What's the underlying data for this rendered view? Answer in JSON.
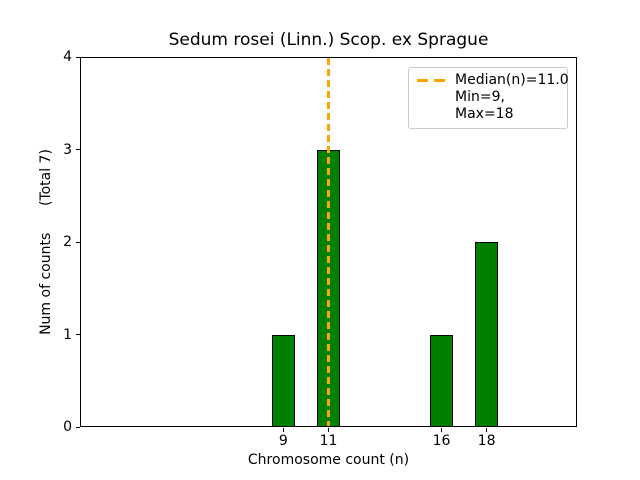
{
  "chart_data": {
    "type": "bar",
    "title": "Sedum rosei (Linn.) Scop. ex Sprague",
    "xlabel": "Chromosome count (n)",
    "ylabel": "Num of counts      (Total 7)",
    "x": [
      9,
      11,
      16,
      18
    ],
    "values": [
      1,
      3,
      1,
      2
    ],
    "total_counts": 7,
    "bar_width_units": 1.0,
    "bar_color": "#008000",
    "bar_edge_color": "#000000",
    "median_line": {
      "x": 11.0,
      "color": "#FFA500",
      "style": "dashed"
    },
    "stats": {
      "median": 11.0,
      "min": 9,
      "max": 18
    },
    "xlim": [
      0,
      22
    ],
    "ylim": [
      0,
      4
    ],
    "xticks": [
      9,
      11,
      16,
      18
    ],
    "yticks": [
      0,
      1,
      2,
      3,
      4
    ],
    "grid": false,
    "legend_position": "upper right"
  },
  "legend": {
    "items": [
      {
        "label": "Median(n)=11.0",
        "marker": "orange-dashed-line"
      },
      {
        "label": "Min=9, Max=18",
        "marker": "none"
      }
    ]
  }
}
